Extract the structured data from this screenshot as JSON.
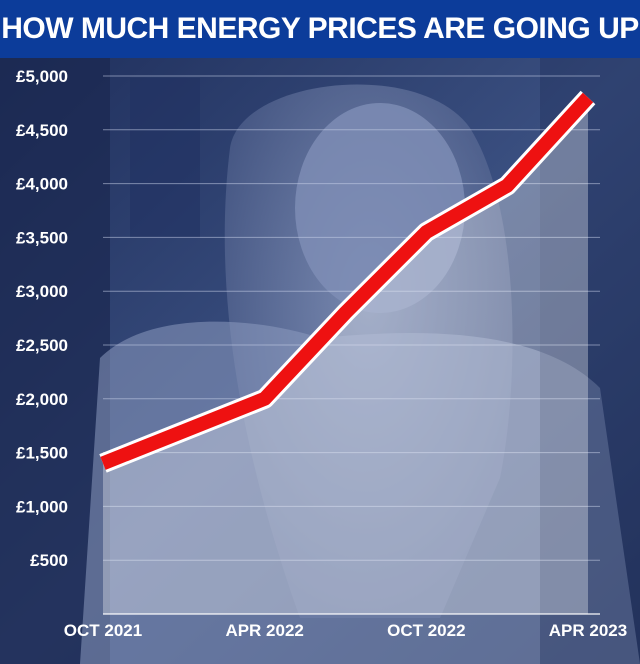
{
  "header": {
    "title": "HOW MUCH ENERGY PRICES ARE GOING UP"
  },
  "colors": {
    "title_bar": "#0c3c9a",
    "line": "#ee1111",
    "line_outline": "#ffffff",
    "labels": "#ffffff"
  },
  "chart_data": {
    "type": "line",
    "title": "HOW MUCH ENERGY PRICES ARE GOING UP",
    "xlabel": "",
    "ylabel": "",
    "x": [
      "Oct 2021",
      "Jan 2022",
      "Apr 2022",
      "Jul 2022",
      "Oct 2022",
      "Jan 2023",
      "Apr 2023"
    ],
    "x_tick_labels": [
      "OCT 2021",
      "APR 2022",
      "OCT 2022",
      "APR 2023"
    ],
    "y_tick_labels": [
      "£500",
      "£1,000",
      "£1,500",
      "£2,000",
      "£2,500",
      "£3,000",
      "£3,500",
      "£4,000",
      "£4,500",
      "£5,000"
    ],
    "y_ticks": [
      500,
      1000,
      1500,
      2000,
      2500,
      3000,
      3500,
      4000,
      4500,
      5000
    ],
    "ylim": [
      0,
      5000
    ],
    "series": [
      {
        "values": [
          1400,
          1700,
          2000,
          2800,
          3550,
          3980,
          4800
        ]
      }
    ],
    "grid": true,
    "area_fill": true
  }
}
